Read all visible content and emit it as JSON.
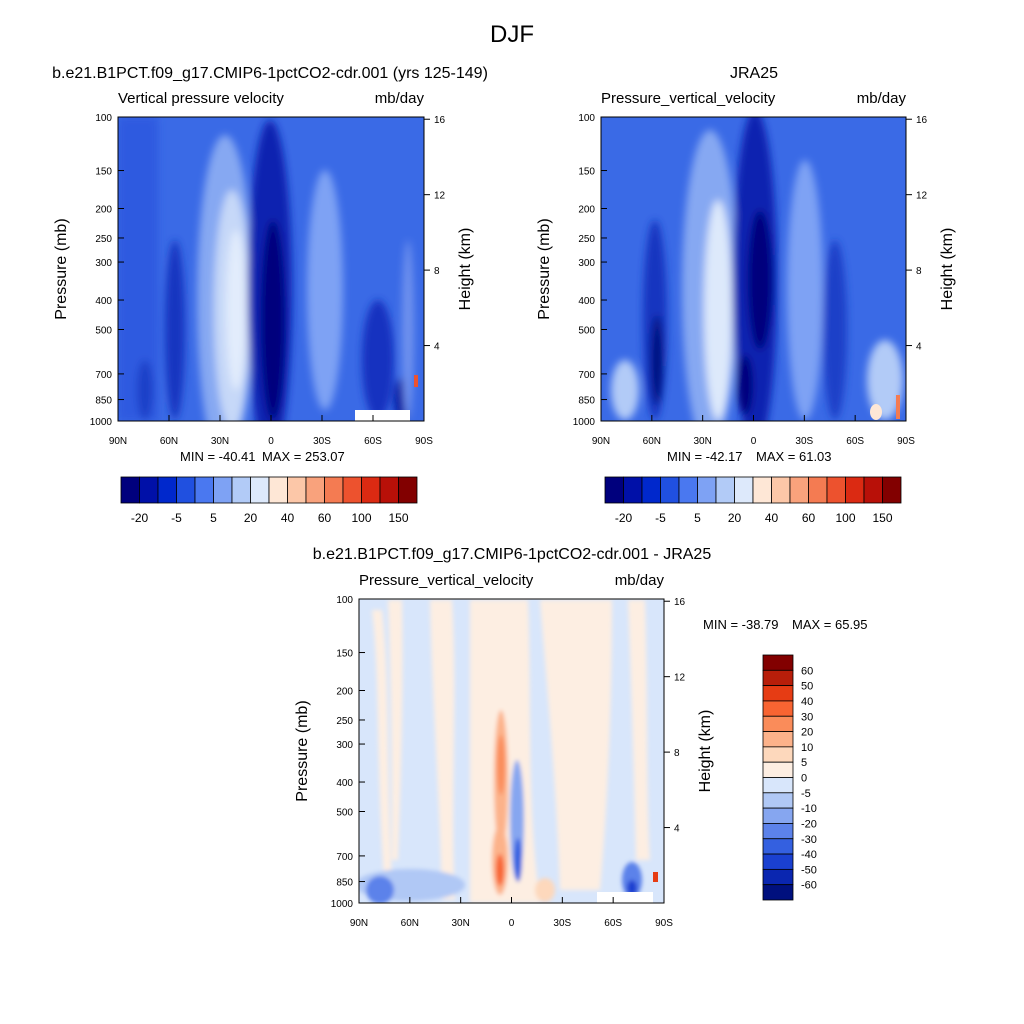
{
  "page_title": "DJF",
  "chart_data": [
    {
      "type": "heatmap",
      "id": "model",
      "title": "b.e21.B1PCT.f09_g17.CMIP6-1pctCO2-cdr.001 (yrs 125-149)",
      "left_label": "Vertical pressure velocity",
      "right_label": "mb/day",
      "ylabel": "Pressure (mb)",
      "y2label": "Height (km)",
      "x_ticks": [
        "90N",
        "60N",
        "30N",
        "0",
        "30S",
        "60S",
        "90S"
      ],
      "x_values": [
        90,
        60,
        30,
        0,
        -30,
        -60,
        -90
      ],
      "y_ticks": [
        100,
        150,
        200,
        250,
        300,
        400,
        500,
        700,
        850,
        1000
      ],
      "ylim": [
        1000,
        100
      ],
      "y2_ticks": [
        4,
        8,
        12,
        16
      ],
      "min_value": -40.41,
      "max_value": 253.07,
      "min_label": "MIN = -40.41",
      "max_label": "MAX = 253.07",
      "colorbar": "full"
    },
    {
      "type": "heatmap",
      "id": "obs",
      "title": "JRA25",
      "left_label": "Pressure_vertical_velocity",
      "right_label": "mb/day",
      "ylabel": "Pressure (mb)",
      "y2label": "Height (km)",
      "x_ticks": [
        "90N",
        "60N",
        "30N",
        "0",
        "30S",
        "60S",
        "90S"
      ],
      "x_values": [
        90,
        60,
        30,
        0,
        -30,
        -60,
        -90
      ],
      "y_ticks": [
        100,
        150,
        200,
        250,
        300,
        400,
        500,
        700,
        850,
        1000
      ],
      "ylim": [
        1000,
        100
      ],
      "y2_ticks": [
        4,
        8,
        12,
        16
      ],
      "min_value": -42.17,
      "max_value": 61.03,
      "min_label": "MIN = -42.17",
      "max_label": "MAX =  61.03",
      "colorbar": "full"
    },
    {
      "type": "heatmap",
      "id": "diff",
      "title": "b.e21.B1PCT.f09_g17.CMIP6-1pctCO2-cdr.001 - JRA25",
      "left_label": "Pressure_vertical_velocity",
      "right_label": "mb/day",
      "ylabel": "Pressure (mb)",
      "y2label": "Height (km)",
      "x_ticks": [
        "90N",
        "60N",
        "30N",
        "0",
        "30S",
        "60S",
        "90S"
      ],
      "x_values": [
        90,
        60,
        30,
        0,
        -30,
        -60,
        -90
      ],
      "y_ticks": [
        100,
        150,
        200,
        250,
        300,
        400,
        500,
        700,
        850,
        1000
      ],
      "ylim": [
        1000,
        100
      ],
      "y2_ticks": [
        4,
        8,
        12,
        16
      ],
      "min_value": -38.79,
      "max_value": 65.95,
      "min_label": "MIN = -38.79",
      "max_label": "MAX =  65.95",
      "colorbar": "diff"
    }
  ],
  "colorbars": {
    "full": {
      "orientation": "horizontal",
      "colors": [
        "#00007d",
        "#0010a8",
        "#0028cc",
        "#2050e0",
        "#4a78f0",
        "#7ea2f4",
        "#b2cbf7",
        "#dde9fb",
        "#fee7d6",
        "#fcc7a8",
        "#f9a27c",
        "#f47b52",
        "#ed522e",
        "#db2a12",
        "#b81008",
        "#820000"
      ],
      "labels": [
        "-20",
        "-5",
        "5",
        "20",
        "40",
        "60",
        "100",
        "150"
      ]
    },
    "diff": {
      "orientation": "vertical",
      "colors": [
        "#820000",
        "#b81e0a",
        "#e63c14",
        "#f86432",
        "#fa8c5a",
        "#fcb28a",
        "#fdd8bc",
        "#fdeee2",
        "#d8e6fb",
        "#b0c8f5",
        "#86a6f0",
        "#5c82ea",
        "#3460e0",
        "#1a40d0",
        "#0a26b0",
        "#00107e"
      ],
      "labels": [
        "60",
        "50",
        "40",
        "30",
        "20",
        "10",
        "5",
        "0",
        "-5",
        "-10",
        "-20",
        "-30",
        "-40",
        "-50",
        "-60"
      ]
    }
  }
}
